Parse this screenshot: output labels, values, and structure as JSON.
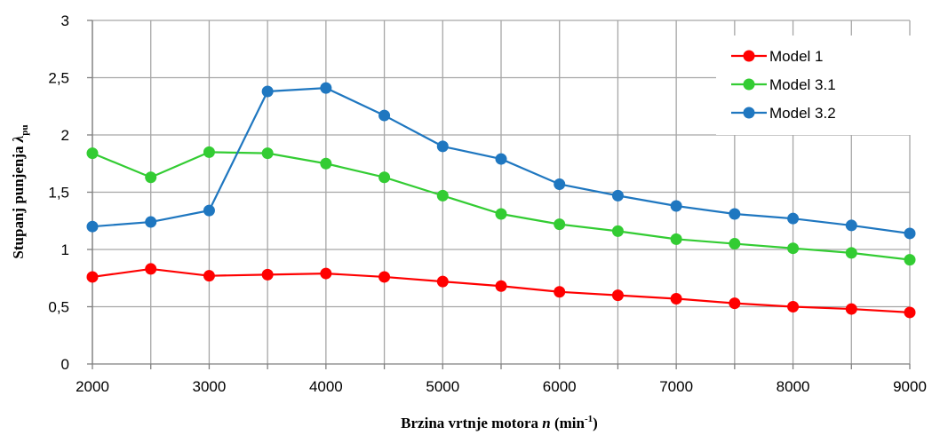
{
  "chart_data": {
    "type": "line",
    "x": [
      2000,
      2500,
      3000,
      3500,
      4000,
      4500,
      5000,
      5500,
      6000,
      6500,
      7000,
      7500,
      8000,
      8500,
      9000
    ],
    "xlim": [
      2000,
      9000
    ],
    "ylim": [
      0,
      3
    ],
    "xticks": [
      2000,
      3000,
      4000,
      5000,
      6000,
      7000,
      8000,
      9000
    ],
    "xtick_labels": [
      "2000",
      "3000",
      "4000",
      "5000",
      "6000",
      "7000",
      "8000",
      "9000"
    ],
    "yticks": [
      0,
      0.5,
      1,
      1.5,
      2,
      2.5,
      3
    ],
    "ytick_labels": [
      "0",
      "0,5",
      "1",
      "1,5",
      "2",
      "2,5",
      "3"
    ],
    "xgrid_step": 500,
    "grid": true,
    "legend_position": "top-right",
    "xlabel": {
      "pre": "Brzina vrtnje motora ",
      "var": "n",
      "mid": " (min",
      "sup": "-1",
      "post": ")"
    },
    "ylabel": {
      "pre": "Stupanj punjenja ",
      "var": "λ",
      "sub": "pu"
    },
    "series": [
      {
        "name": "Model 1",
        "color": "#ff0000",
        "values": [
          0.76,
          0.83,
          0.77,
          0.78,
          0.79,
          0.76,
          0.72,
          0.68,
          0.63,
          0.6,
          0.57,
          0.53,
          0.5,
          0.48,
          0.45
        ]
      },
      {
        "name": "Model 3.1",
        "color": "#33cc33",
        "values": [
          1.84,
          1.63,
          1.85,
          1.84,
          1.75,
          1.63,
          1.47,
          1.31,
          1.22,
          1.16,
          1.09,
          1.05,
          1.01,
          0.97,
          0.91
        ]
      },
      {
        "name": "Model 3.2",
        "color": "#1f77c0",
        "values": [
          1.2,
          1.24,
          1.34,
          2.38,
          2.41,
          2.17,
          1.9,
          1.79,
          1.57,
          1.47,
          1.38,
          1.31,
          1.27,
          1.21,
          1.14
        ]
      }
    ]
  }
}
